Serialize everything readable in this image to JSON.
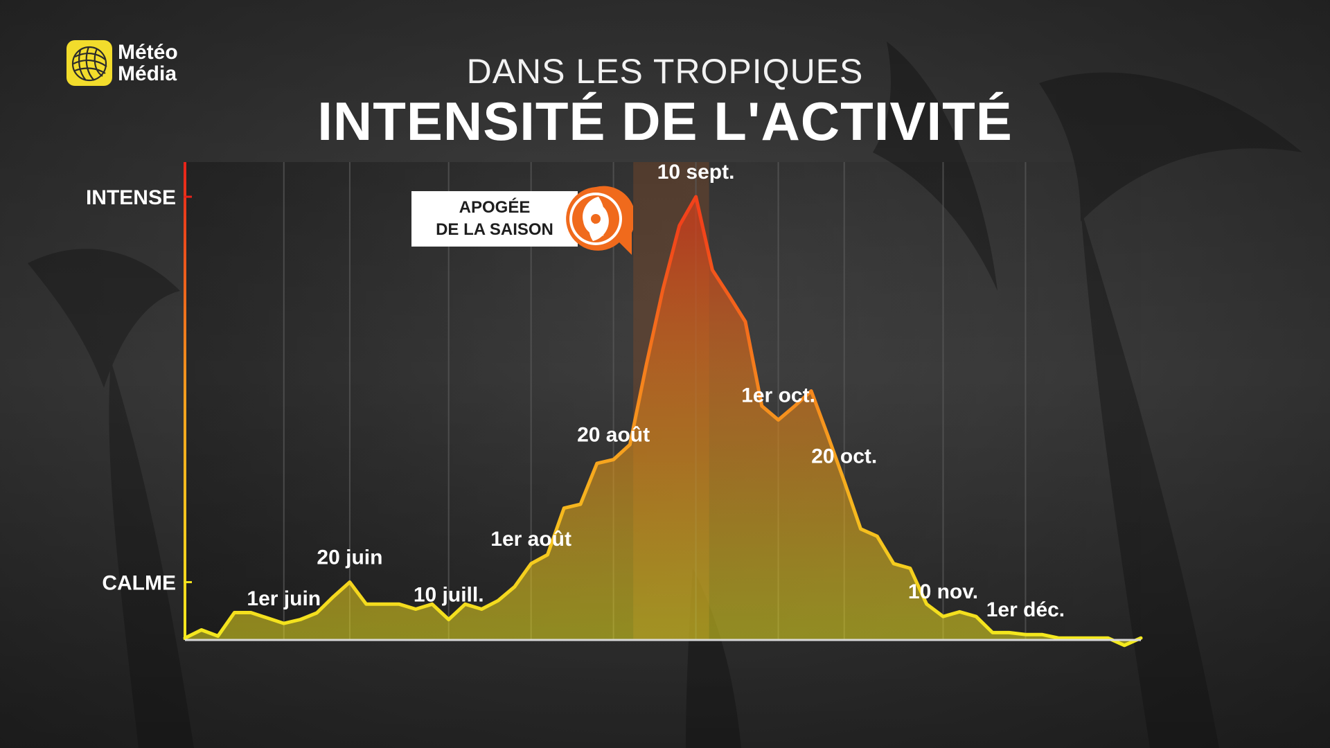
{
  "brand": {
    "line1": "Météo",
    "line2": "Média",
    "logo_color": "#f2dc2c"
  },
  "header": {
    "subtitle": "DANS LES TROPIQUES",
    "title": "INTENSITÉ DE L'ACTIVITÉ"
  },
  "callout": {
    "line1": "APOGÉE",
    "line2": "DE LA SAISON",
    "icon": "hurricane-icon",
    "accent": "#f06a1c"
  },
  "colors": {
    "line_low": "#f4ea1e",
    "line_mid": "#f7a21e",
    "line_high": "#f2521a",
    "axis_top": "#e8221a"
  },
  "chart_data": {
    "type": "area",
    "title": "INTENSITÉ DE L'ACTIVITÉ",
    "subtitle": "DANS LES TROPIQUES",
    "y_axis": {
      "labels": [
        {
          "text": "CALME",
          "value": 0.0
        },
        {
          "text": "INTENSE",
          "value": 1.0
        }
      ],
      "ylim": [
        -0.15,
        1.09
      ]
    },
    "x_axis": {
      "xlim": [
        0,
        58
      ]
    },
    "grid": "vertical",
    "highlight_band": {
      "from": 27.2,
      "to": 31.8
    },
    "series": [
      {
        "x": [
          0,
          1,
          2,
          3,
          4,
          5,
          6,
          7,
          8,
          9,
          10,
          11,
          12,
          13,
          14,
          15,
          16,
          17,
          18,
          19,
          20,
          21,
          22,
          23,
          24,
          25,
          26,
          27,
          28,
          29,
          30,
          31,
          32,
          33,
          34,
          35,
          36,
          37,
          38,
          39,
          40,
          41,
          42,
          43,
          44,
          45,
          46,
          47,
          48,
          49,
          50,
          51,
          52,
          53,
          54,
          55,
          56,
          57,
          58
        ],
        "values": [
          -0.145,
          -0.124,
          -0.14,
          -0.079,
          -0.079,
          -0.093,
          -0.107,
          -0.097,
          -0.08,
          -0.038,
          0.0,
          -0.057,
          -0.057,
          -0.057,
          -0.07,
          -0.057,
          -0.097,
          -0.057,
          -0.07,
          -0.048,
          -0.012,
          0.048,
          0.071,
          0.192,
          0.202,
          0.308,
          0.318,
          0.357,
          0.565,
          0.76,
          0.925,
          1.0,
          0.81,
          0.744,
          0.676,
          0.457,
          0.421,
          0.457,
          0.496,
          0.381,
          0.262,
          0.138,
          0.119,
          0.048,
          0.036,
          -0.057,
          -0.089,
          -0.077,
          -0.089,
          -0.131,
          -0.131,
          -0.136,
          -0.136,
          -0.145,
          -0.145,
          -0.145,
          -0.145,
          -0.164,
          -0.145
        ]
      }
    ],
    "annotations": [
      {
        "text": "1er juin",
        "x": 6
      },
      {
        "text": "20 juin",
        "x": 10
      },
      {
        "text": "10 juill.",
        "x": 16
      },
      {
        "text": "1er août",
        "x": 21
      },
      {
        "text": "20 août",
        "x": 26
      },
      {
        "text": "10 sept.",
        "x": 31
      },
      {
        "text": "1er oct.",
        "x": 36
      },
      {
        "text": "20 oct.",
        "x": 40
      },
      {
        "text": "10 nov.",
        "x": 46
      },
      {
        "text": "1er déc.",
        "x": 51
      }
    ],
    "peak": {
      "label": "APOGÉE DE LA SAISON",
      "x": 31
    }
  }
}
